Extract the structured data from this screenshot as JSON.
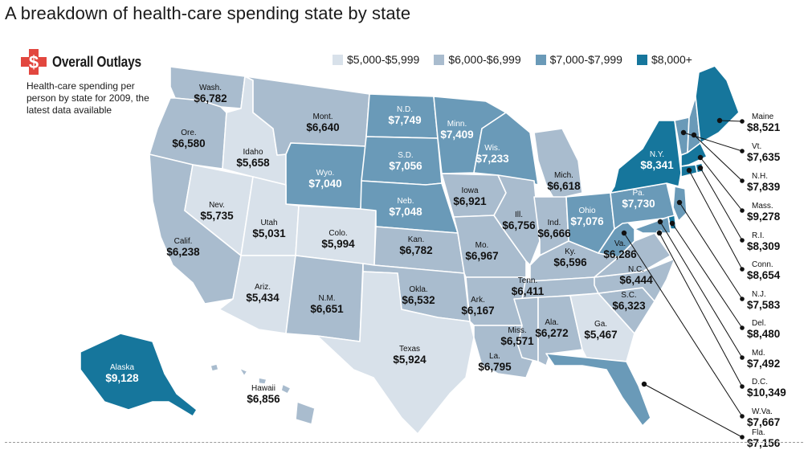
{
  "title": "A breakdown of health-care spending state by state",
  "brand": {
    "title": "Overall Outlays",
    "icon": "dollar-cross-icon",
    "color": "#e2473f"
  },
  "subtitle": "Health-care spending per person by state for 2009, the latest data available",
  "legend": [
    {
      "label": "$5,000-$5,999",
      "color": "#d8e1ea",
      "tier": 1
    },
    {
      "label": "$6,000-$6,999",
      "color": "#a9bcce",
      "tier": 2
    },
    {
      "label": "$7,000-$7,999",
      "color": "#6a9ab8",
      "tier": 3
    },
    {
      "label": "$8,000+",
      "color": "#16769c",
      "tier": 4
    }
  ],
  "states": [
    {
      "id": "wa",
      "name": "Wash.",
      "value": "$6,782",
      "tier": 2
    },
    {
      "id": "or",
      "name": "Ore.",
      "value": "$6,580",
      "tier": 2
    },
    {
      "id": "ca",
      "name": "Calif.",
      "value": "$6,238",
      "tier": 2
    },
    {
      "id": "id",
      "name": "Idaho",
      "value": "$5,658",
      "tier": 1
    },
    {
      "id": "nv",
      "name": "Nev.",
      "value": "$5,735",
      "tier": 1
    },
    {
      "id": "mt",
      "name": "Mont.",
      "value": "$6,640",
      "tier": 2
    },
    {
      "id": "wy",
      "name": "Wyo.",
      "value": "$7,040",
      "tier": 3
    },
    {
      "id": "ut",
      "name": "Utah",
      "value": "$5,031",
      "tier": 1
    },
    {
      "id": "co",
      "name": "Colo.",
      "value": "$5,994",
      "tier": 1
    },
    {
      "id": "az",
      "name": "Ariz.",
      "value": "$5,434",
      "tier": 1
    },
    {
      "id": "nm",
      "name": "N.M.",
      "value": "$6,651",
      "tier": 2
    },
    {
      "id": "nd",
      "name": "N.D.",
      "value": "$7,749",
      "tier": 3
    },
    {
      "id": "sd",
      "name": "S.D.",
      "value": "$7,056",
      "tier": 3
    },
    {
      "id": "ne",
      "name": "Neb.",
      "value": "$7,048",
      "tier": 3
    },
    {
      "id": "ks",
      "name": "Kan.",
      "value": "$6,782",
      "tier": 2
    },
    {
      "id": "ok",
      "name": "Okla.",
      "value": "$6,532",
      "tier": 2
    },
    {
      "id": "tx",
      "name": "Texas",
      "value": "$5,924",
      "tier": 1
    },
    {
      "id": "mn",
      "name": "Minn.",
      "value": "$7,409",
      "tier": 3
    },
    {
      "id": "ia",
      "name": "Iowa",
      "value": "$6,921",
      "tier": 2
    },
    {
      "id": "mo",
      "name": "Mo.",
      "value": "$6,967",
      "tier": 2
    },
    {
      "id": "ar",
      "name": "Ark.",
      "value": "$6,167",
      "tier": 2
    },
    {
      "id": "la",
      "name": "La.",
      "value": "$6,795",
      "tier": 2
    },
    {
      "id": "wi",
      "name": "Wis.",
      "value": "$7,233",
      "tier": 3
    },
    {
      "id": "il",
      "name": "Ill.",
      "value": "$6,756",
      "tier": 2
    },
    {
      "id": "mi",
      "name": "Mich.",
      "value": "$6,618",
      "tier": 2
    },
    {
      "id": "in",
      "name": "Ind.",
      "value": "$6,666",
      "tier": 2
    },
    {
      "id": "oh",
      "name": "Ohio",
      "value": "$7,076",
      "tier": 3
    },
    {
      "id": "ky",
      "name": "Ky.",
      "value": "$6,596",
      "tier": 2
    },
    {
      "id": "tn",
      "name": "Tenn.",
      "value": "$6,411",
      "tier": 2
    },
    {
      "id": "ms",
      "name": "Miss.",
      "value": "$6,571",
      "tier": 2
    },
    {
      "id": "al",
      "name": "Ala.",
      "value": "$6,272",
      "tier": 2
    },
    {
      "id": "ga",
      "name": "Ga.",
      "value": "$5,467",
      "tier": 1
    },
    {
      "id": "fl",
      "name": "Fla.",
      "value": "$7,156",
      "tier": 3
    },
    {
      "id": "sc",
      "name": "S.C.",
      "value": "$6,323",
      "tier": 2
    },
    {
      "id": "nc",
      "name": "N.C.",
      "value": "$6,444",
      "tier": 2
    },
    {
      "id": "va",
      "name": "Va.",
      "value": "$6,286",
      "tier": 2
    },
    {
      "id": "wv",
      "name": "W.Va.",
      "value": "$7,667",
      "tier": 3
    },
    {
      "id": "pa",
      "name": "Pa.",
      "value": "$7,730",
      "tier": 3
    },
    {
      "id": "ny",
      "name": "N.Y.",
      "value": "$8,341",
      "tier": 4
    },
    {
      "id": "vt",
      "name": "Vt.",
      "value": "$7,635",
      "tier": 3
    },
    {
      "id": "nh",
      "name": "N.H.",
      "value": "$7,839",
      "tier": 3
    },
    {
      "id": "me",
      "name": "Maine",
      "value": "$8,521",
      "tier": 4
    },
    {
      "id": "ma",
      "name": "Mass.",
      "value": "$9,278",
      "tier": 4
    },
    {
      "id": "ri",
      "name": "R.I.",
      "value": "$8,309",
      "tier": 4
    },
    {
      "id": "ct",
      "name": "Conn.",
      "value": "$8,654",
      "tier": 4
    },
    {
      "id": "nj",
      "name": "N.J.",
      "value": "$7,583",
      "tier": 3
    },
    {
      "id": "de",
      "name": "Del.",
      "value": "$8,480",
      "tier": 4
    },
    {
      "id": "md",
      "name": "Md.",
      "value": "$7,492",
      "tier": 3
    },
    {
      "id": "dc",
      "name": "D.C.",
      "value": "$10,349",
      "tier": 4
    },
    {
      "id": "ak",
      "name": "Alaska",
      "value": "$9,128",
      "tier": 4
    },
    {
      "id": "hi",
      "name": "Hawaii",
      "value": "$6,856",
      "tier": 2
    }
  ]
}
